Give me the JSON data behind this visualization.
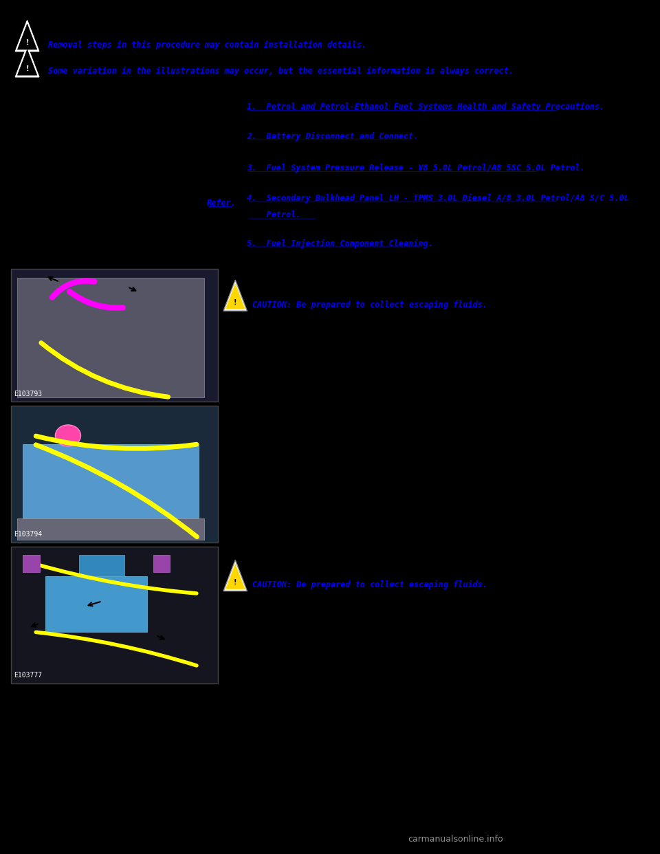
{
  "bg_color": "#000000",
  "text_color_blue": "#0000FF",
  "text_color_white": "#FFFFFF",
  "warning_icon_color": "#FFD700",
  "warning_text1": "Removal steps in this procedure may contain installation details.",
  "warning_text2": "Some variation in the illustrations may occur, but the essential information is always correct.",
  "link1": "Petrol and Petrol-Ethanol Fuel Systems Health and Safety Precautions.",
  "link2": "Battery Disconnect and Connect.",
  "link3": "Fuel System Pressure Release - V8 5.0L Petrol/A8 5SC 5.0L Petrol.",
  "link4_part1": "Secondary Bulkhead Panel LH - TPMS 3.0L Diesel A/8 3.0L Petrol/A8 S/C 5.0L",
  "link4_part2": "Petrol.",
  "link4_label": "Refer.",
  "link5": "Fuel Injection Component Cleaning.",
  "caution1": "CAUTION: Be prepared to collect escaping fluids.",
  "caution2": "CAUTION: Be prepared to collect escaping fluids.",
  "img1_label": "E103793",
  "img2_label": "E103794",
  "img3_label": "E103777",
  "watermark": "carmanualsonline.info"
}
